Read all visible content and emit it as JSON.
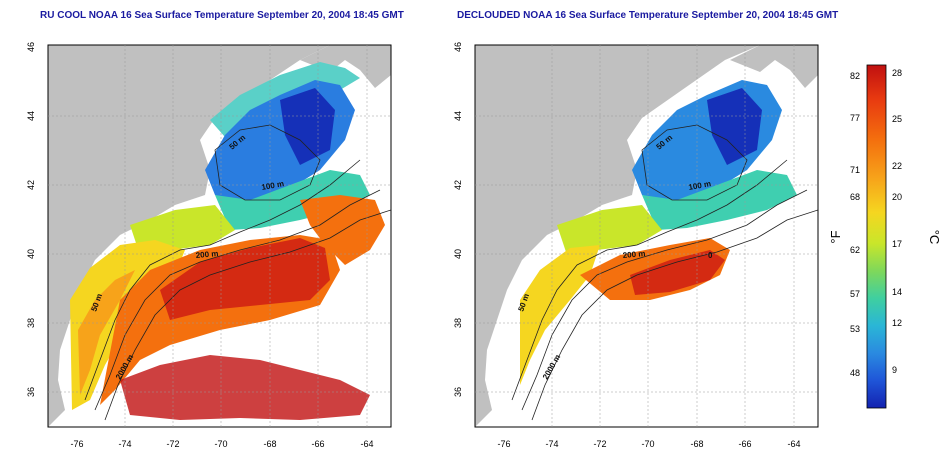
{
  "titles": {
    "left": "RU COOL NOAA 16 Sea Surface Temperature September 20, 2004 18:45 GMT",
    "right": "DECLOUDED NOAA 16 Sea Surface Temperature September 20, 2004 18:45 GMT"
  },
  "maps": [
    {
      "id": "left",
      "x_ticks": [
        "-76",
        "-74",
        "-72",
        "-70",
        "-68",
        "-66",
        "-64"
      ],
      "y_ticks": [
        "46",
        "44",
        "42",
        "40",
        "38",
        "36"
      ],
      "contour_labels": [
        "50 m",
        "100 m",
        "200 m",
        "50 m",
        "2000 m"
      ]
    },
    {
      "id": "right",
      "x_ticks": [
        "-76",
        "-74",
        "-72",
        "-70",
        "-68",
        "-66",
        "-64"
      ],
      "y_ticks": [
        "46",
        "44",
        "42",
        "40",
        "38",
        "36"
      ],
      "contour_labels": [
        "50 m",
        "100 m",
        "200 m",
        "50 m",
        "2000 m",
        "0"
      ]
    }
  ],
  "colorbar": {
    "f_label": "°F",
    "c_label": "°C",
    "f_ticks": [
      "82",
      "77",
      "71",
      "68",
      "62",
      "57",
      "53",
      "48"
    ],
    "c_ticks": [
      "28",
      "25",
      "22",
      "20",
      "17",
      "14",
      "12",
      "9"
    ],
    "colors": [
      "#c01010",
      "#e83a10",
      "#f4700e",
      "#f7a31a",
      "#f5d620",
      "#c9e62a",
      "#7fd85a",
      "#3fcfa0",
      "#2ab6d6",
      "#2a8ae0",
      "#1f55d8",
      "#1322b0"
    ]
  },
  "palette": {
    "land": "#c0c0c0",
    "cloud": "#ffffff",
    "title": "#1a1aa0"
  }
}
